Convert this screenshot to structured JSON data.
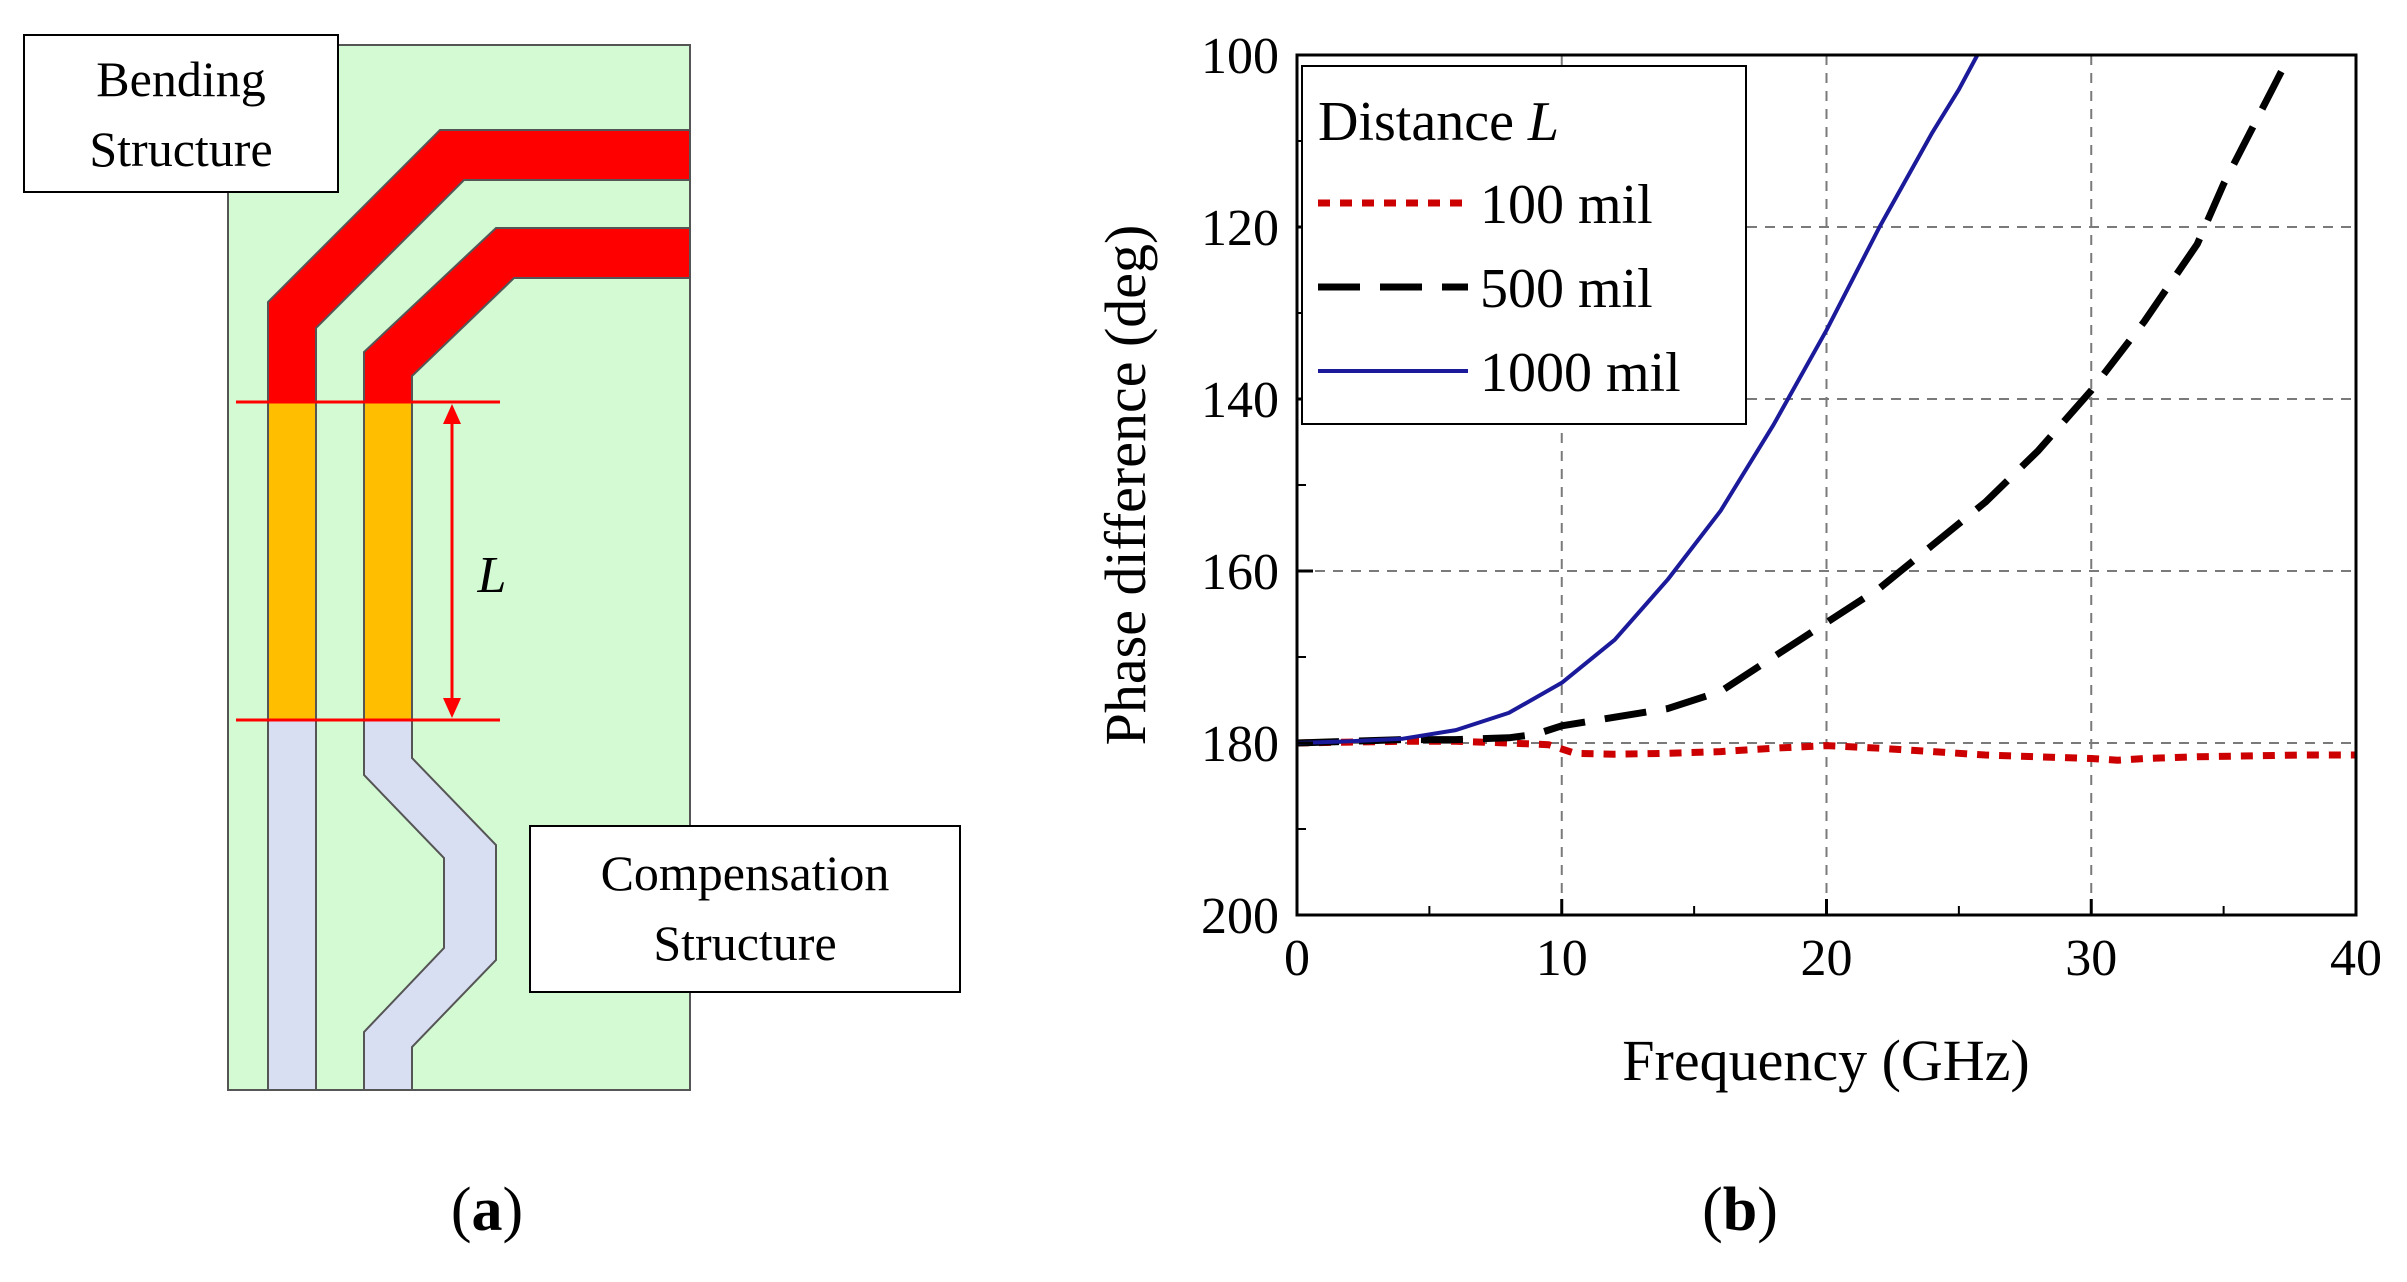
{
  "panel_a": {
    "label_bending_line1": "Bending",
    "label_bending_line2": "Structure",
    "label_compensation_line1": "Compensation",
    "label_compensation_line2": "Structure",
    "dimension_label": "L",
    "caption_open": "(",
    "caption_letter": "a",
    "caption_close": ")",
    "colors": {
      "substrate": "#d4fad4",
      "bend_trace": "#ff0000",
      "measured_segment": "#ffbf00",
      "straight_trace": "#d9dff2",
      "marker": "#ff0000"
    }
  },
  "panel_b": {
    "caption_open": "(",
    "caption_letter": "b",
    "caption_close": ")"
  },
  "chart_data": {
    "type": "line",
    "title": "",
    "xlabel": "Frequency (GHz)",
    "ylabel": "Phase difference (deg)",
    "xlim": [
      0,
      40
    ],
    "ylim": [
      100,
      200
    ],
    "y_inverted": true,
    "xticks": [
      0,
      10,
      20,
      30,
      40
    ],
    "yticks": [
      100,
      120,
      140,
      160,
      180,
      200
    ],
    "grid": true,
    "legend": {
      "title_prefix": "Distance ",
      "title_var": "L",
      "position": "top-left"
    },
    "series": [
      {
        "name": "100 mil",
        "style": "dotted",
        "color": "#cc0000",
        "x": [
          0,
          2,
          4,
          6,
          8,
          9.5,
          10.5,
          12,
          14,
          16,
          18,
          20,
          22,
          24,
          26,
          28,
          30,
          31,
          32,
          34,
          36,
          38,
          40
        ],
        "y": [
          180,
          179.9,
          179.8,
          179.8,
          180,
          180.2,
          181.2,
          181.3,
          181.2,
          181,
          180.6,
          180.3,
          180.6,
          181,
          181.4,
          181.6,
          181.8,
          182,
          181.8,
          181.6,
          181.5,
          181.4,
          181.4
        ]
      },
      {
        "name": "500 mil",
        "style": "dashed",
        "color": "#000000",
        "x": [
          0,
          2,
          4,
          6,
          8,
          9,
          10,
          12,
          14,
          16,
          18,
          20,
          22,
          24,
          26,
          28,
          30,
          32,
          34,
          35,
          36,
          37,
          37.5
        ],
        "y": [
          180,
          179.8,
          179.6,
          179.6,
          179.4,
          179,
          178,
          177,
          176,
          174,
          170,
          166,
          162,
          157,
          152,
          146,
          139,
          131,
          122,
          115,
          109,
          103,
          100
        ]
      },
      {
        "name": "1000 mil",
        "style": "solid",
        "color": "#1a1a9a",
        "x": [
          0,
          2,
          4,
          6,
          8,
          10,
          12,
          14,
          16,
          18,
          20,
          22,
          24,
          25,
          25.7
        ],
        "y": [
          180,
          179.8,
          179.5,
          178.5,
          176.5,
          173,
          168,
          161,
          153,
          143,
          132,
          120,
          109,
          104,
          100
        ]
      }
    ]
  }
}
